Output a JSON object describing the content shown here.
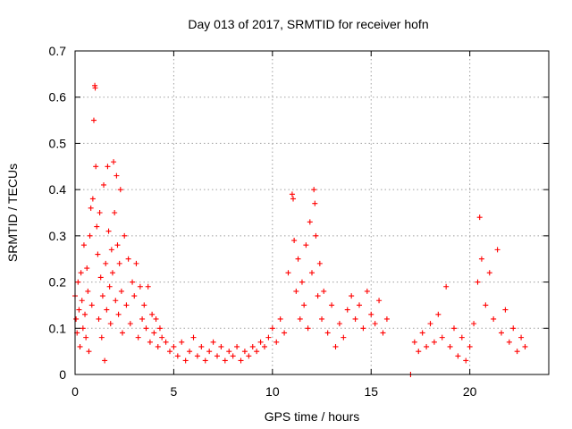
{
  "chart_data": {
    "type": "scatter",
    "title": "Day 013 of 2017, SRMTID for receiver hofn",
    "xlabel": "GPS time / hours",
    "ylabel": "SRMTID / TECUs",
    "xlim": [
      0,
      24
    ],
    "ylim": [
      0,
      0.7
    ],
    "xticks": [
      0,
      5,
      10,
      15,
      20
    ],
    "xtick_labels": [
      "0",
      "5",
      "10",
      "15",
      "20"
    ],
    "yticks": [
      0,
      0.1,
      0.2,
      0.3,
      0.4,
      0.5,
      0.6,
      0.7
    ],
    "ytick_labels": [
      "0",
      "0.1",
      "0.2",
      "0.3",
      "0.4",
      "0.5",
      "0.6",
      "0.7"
    ],
    "grid": true,
    "marker": "plus",
    "color": "#ff0000",
    "series": [
      {
        "name": "SRMTID",
        "points": [
          [
            0.0,
            0.17
          ],
          [
            0.05,
            0.12
          ],
          [
            0.1,
            0.09
          ],
          [
            0.15,
            0.2
          ],
          [
            0.2,
            0.14
          ],
          [
            0.25,
            0.06
          ],
          [
            0.3,
            0.22
          ],
          [
            0.35,
            0.16
          ],
          [
            0.4,
            0.1
          ],
          [
            0.45,
            0.28
          ],
          [
            0.5,
            0.13
          ],
          [
            0.55,
            0.08
          ],
          [
            0.6,
            0.23
          ],
          [
            0.65,
            0.18
          ],
          [
            0.7,
            0.05
          ],
          [
            0.75,
            0.3
          ],
          [
            0.8,
            0.36
          ],
          [
            0.85,
            0.15
          ],
          [
            0.9,
            0.38
          ],
          [
            0.95,
            0.55
          ],
          [
            1.0,
            0.625
          ],
          [
            1.02,
            0.62
          ],
          [
            1.05,
            0.45
          ],
          [
            1.1,
            0.32
          ],
          [
            1.15,
            0.26
          ],
          [
            1.2,
            0.12
          ],
          [
            1.25,
            0.35
          ],
          [
            1.3,
            0.21
          ],
          [
            1.35,
            0.08
          ],
          [
            1.4,
            0.17
          ],
          [
            1.45,
            0.41
          ],
          [
            1.5,
            0.03
          ],
          [
            1.55,
            0.24
          ],
          [
            1.6,
            0.14
          ],
          [
            1.65,
            0.45
          ],
          [
            1.7,
            0.31
          ],
          [
            1.75,
            0.19
          ],
          [
            1.8,
            0.11
          ],
          [
            1.85,
            0.27
          ],
          [
            1.9,
            0.22
          ],
          [
            1.95,
            0.46
          ],
          [
            2.0,
            0.35
          ],
          [
            2.05,
            0.16
          ],
          [
            2.1,
            0.43
          ],
          [
            2.15,
            0.28
          ],
          [
            2.2,
            0.13
          ],
          [
            2.25,
            0.24
          ],
          [
            2.3,
            0.4
          ],
          [
            2.35,
            0.18
          ],
          [
            2.4,
            0.09
          ],
          [
            2.5,
            0.3
          ],
          [
            2.6,
            0.15
          ],
          [
            2.7,
            0.25
          ],
          [
            2.8,
            0.11
          ],
          [
            2.9,
            0.2
          ],
          [
            3.0,
            0.17
          ],
          [
            3.1,
            0.24
          ],
          [
            3.2,
            0.08
          ],
          [
            3.3,
            0.19
          ],
          [
            3.4,
            0.12
          ],
          [
            3.5,
            0.15
          ],
          [
            3.6,
            0.1
          ],
          [
            3.7,
            0.19
          ],
          [
            3.8,
            0.07
          ],
          [
            3.9,
            0.13
          ],
          [
            4.0,
            0.09
          ],
          [
            4.1,
            0.12
          ],
          [
            4.2,
            0.06
          ],
          [
            4.3,
            0.1
          ],
          [
            4.4,
            0.08
          ],
          [
            4.6,
            0.07
          ],
          [
            4.8,
            0.05
          ],
          [
            5.0,
            0.06
          ],
          [
            5.2,
            0.04
          ],
          [
            5.4,
            0.07
          ],
          [
            5.6,
            0.03
          ],
          [
            5.8,
            0.05
          ],
          [
            6.0,
            0.08
          ],
          [
            6.2,
            0.04
          ],
          [
            6.4,
            0.06
          ],
          [
            6.6,
            0.03
          ],
          [
            6.8,
            0.05
          ],
          [
            7.0,
            0.07
          ],
          [
            7.2,
            0.04
          ],
          [
            7.4,
            0.06
          ],
          [
            7.6,
            0.03
          ],
          [
            7.8,
            0.05
          ],
          [
            8.0,
            0.04
          ],
          [
            8.2,
            0.06
          ],
          [
            8.4,
            0.03
          ],
          [
            8.6,
            0.05
          ],
          [
            8.8,
            0.04
          ],
          [
            9.0,
            0.06
          ],
          [
            9.2,
            0.05
          ],
          [
            9.4,
            0.07
          ],
          [
            9.6,
            0.06
          ],
          [
            9.8,
            0.08
          ],
          [
            10.0,
            0.1
          ],
          [
            10.2,
            0.07
          ],
          [
            10.4,
            0.12
          ],
          [
            10.6,
            0.09
          ],
          [
            10.8,
            0.22
          ],
          [
            11.0,
            0.39
          ],
          [
            11.05,
            0.38
          ],
          [
            11.1,
            0.29
          ],
          [
            11.2,
            0.18
          ],
          [
            11.3,
            0.25
          ],
          [
            11.4,
            0.12
          ],
          [
            11.5,
            0.2
          ],
          [
            11.6,
            0.15
          ],
          [
            11.7,
            0.28
          ],
          [
            11.8,
            0.1
          ],
          [
            11.9,
            0.33
          ],
          [
            12.0,
            0.22
          ],
          [
            12.1,
            0.4
          ],
          [
            12.15,
            0.37
          ],
          [
            12.2,
            0.3
          ],
          [
            12.3,
            0.17
          ],
          [
            12.4,
            0.24
          ],
          [
            12.5,
            0.12
          ],
          [
            12.6,
            0.18
          ],
          [
            12.8,
            0.09
          ],
          [
            13.0,
            0.15
          ],
          [
            13.2,
            0.06
          ],
          [
            13.4,
            0.11
          ],
          [
            13.6,
            0.08
          ],
          [
            13.8,
            0.14
          ],
          [
            14.0,
            0.17
          ],
          [
            14.2,
            0.12
          ],
          [
            14.4,
            0.15
          ],
          [
            14.6,
            0.1
          ],
          [
            14.8,
            0.18
          ],
          [
            15.0,
            0.13
          ],
          [
            15.2,
            0.11
          ],
          [
            15.4,
            0.16
          ],
          [
            15.6,
            0.09
          ],
          [
            15.8,
            0.12
          ],
          [
            17.0,
            0.0
          ],
          [
            17.2,
            0.07
          ],
          [
            17.4,
            0.05
          ],
          [
            17.6,
            0.09
          ],
          [
            17.8,
            0.06
          ],
          [
            18.0,
            0.11
          ],
          [
            18.2,
            0.07
          ],
          [
            18.4,
            0.13
          ],
          [
            18.6,
            0.08
          ],
          [
            18.8,
            0.19
          ],
          [
            19.0,
            0.06
          ],
          [
            19.2,
            0.1
          ],
          [
            19.4,
            0.04
          ],
          [
            19.6,
            0.08
          ],
          [
            19.8,
            0.03
          ],
          [
            20.0,
            0.06
          ],
          [
            20.2,
            0.11
          ],
          [
            20.4,
            0.2
          ],
          [
            20.5,
            0.34
          ],
          [
            20.6,
            0.25
          ],
          [
            20.8,
            0.15
          ],
          [
            21.0,
            0.22
          ],
          [
            21.2,
            0.12
          ],
          [
            21.4,
            0.27
          ],
          [
            21.6,
            0.09
          ],
          [
            21.8,
            0.14
          ],
          [
            22.0,
            0.07
          ],
          [
            22.2,
            0.1
          ],
          [
            22.4,
            0.05
          ],
          [
            22.6,
            0.08
          ],
          [
            22.8,
            0.06
          ]
        ]
      }
    ]
  }
}
